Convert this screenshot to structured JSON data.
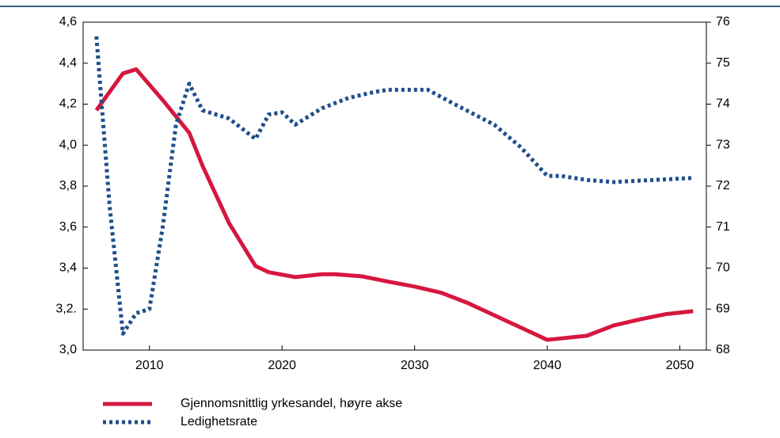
{
  "chart_data": {
    "type": "line",
    "xlim": [
      2005,
      2052
    ],
    "xticks": [
      2010,
      2020,
      2030,
      2040,
      2050
    ],
    "ylim": [
      3.0,
      4.6
    ],
    "yticks": [
      {
        "value": 3.0,
        "label": "3,0"
      },
      {
        "value": 3.2,
        "label": "3,2."
      },
      {
        "value": 3.4,
        "label": "3,4"
      },
      {
        "value": 3.6,
        "label": "3,6"
      },
      {
        "value": 3.8,
        "label": "3,8"
      },
      {
        "value": 4.0,
        "label": "4,0"
      },
      {
        "value": 4.2,
        "label": "4,2"
      },
      {
        "value": 4.4,
        "label": "4,4"
      },
      {
        "value": 4.6,
        "label": "4,6"
      }
    ],
    "y2lim": [
      68,
      76
    ],
    "y2ticks": [
      68,
      69,
      70,
      71,
      72,
      73,
      74,
      75,
      76
    ],
    "series": [
      {
        "name": "Gjennomsnittlig yrkesandel, høyre akse",
        "color": "#d6173f",
        "axis": "y2",
        "dash": false,
        "x": [
          2006,
          2008,
          2009,
          2011,
          2013,
          2014,
          2016,
          2018,
          2019,
          2021,
          2023,
          2024,
          2026,
          2028,
          2030,
          2032,
          2034,
          2036,
          2038,
          2040,
          2043,
          2045,
          2047,
          2049,
          2051
        ],
        "values": [
          73.85,
          74.75,
          74.85,
          74.1,
          73.3,
          72.5,
          71.1,
          70.05,
          69.9,
          69.78,
          69.85,
          69.85,
          69.8,
          69.67,
          69.55,
          69.4,
          69.15,
          68.85,
          68.55,
          68.25,
          68.35,
          68.6,
          68.75,
          68.88,
          68.95
        ]
      },
      {
        "name": "Ledighetsrate",
        "color": "#1f4e8c",
        "axis": "y",
        "dash": true,
        "x": [
          2006,
          2007,
          2008,
          2009,
          2010,
          2011,
          2012,
          2013,
          2014,
          2016,
          2018,
          2019,
          2020,
          2021,
          2023,
          2025,
          2027,
          2028,
          2031,
          2033,
          2036,
          2038,
          2040,
          2041,
          2043,
          2045,
          2048,
          2051
        ],
        "values": [
          4.53,
          3.7,
          3.08,
          3.18,
          3.2,
          3.6,
          4.1,
          4.3,
          4.17,
          4.13,
          4.03,
          4.15,
          4.16,
          4.1,
          4.18,
          4.23,
          4.26,
          4.27,
          4.27,
          4.2,
          4.1,
          3.99,
          3.85,
          3.85,
          3.83,
          3.82,
          3.83,
          3.84
        ]
      }
    ]
  }
}
